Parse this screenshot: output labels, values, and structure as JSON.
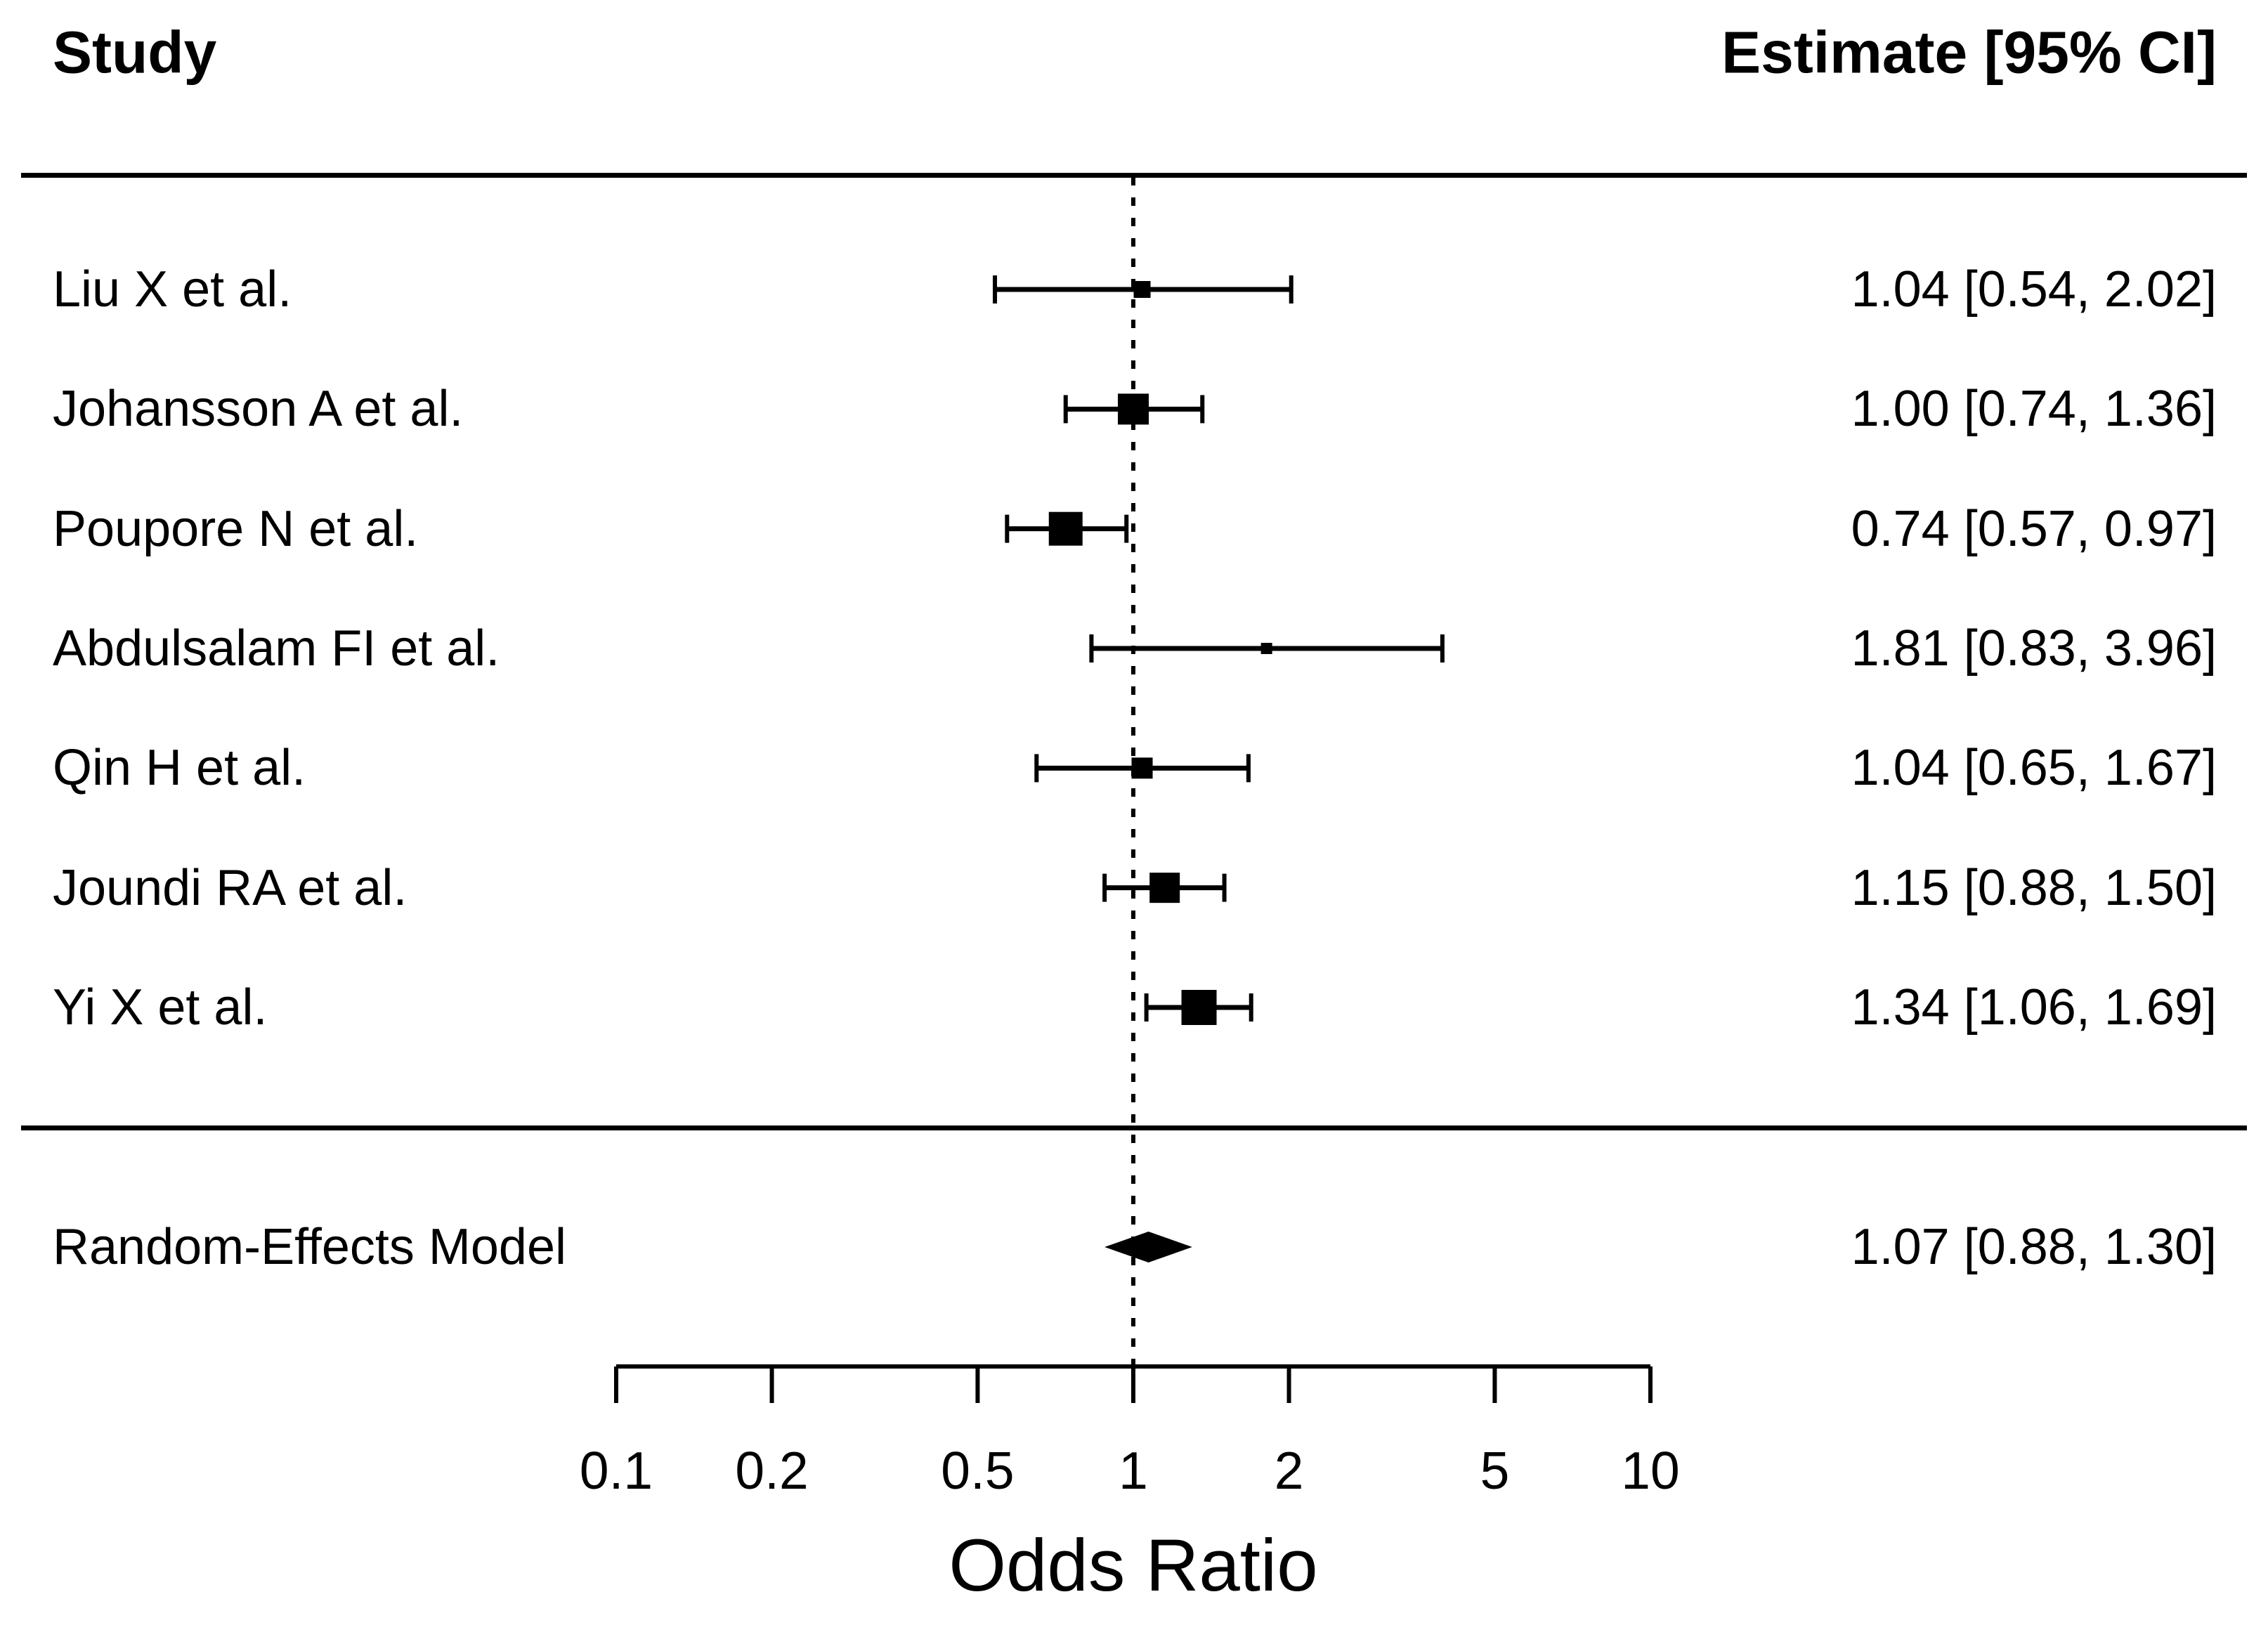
{
  "headers": {
    "study": "Study",
    "estimate": "Estimate [95% CI]"
  },
  "chart_data": {
    "type": "forest",
    "x_scale": "log10",
    "xlabel": "Odds Ratio",
    "x_ticks": [
      0.1,
      0.2,
      0.5,
      1,
      2,
      5,
      10
    ],
    "x_tick_labels": [
      "0.1",
      "0.2",
      "0.5",
      "1",
      "2",
      "5",
      "10"
    ],
    "x_range": [
      0.1,
      10
    ],
    "reference_line": 1,
    "columns": {
      "left_header": "Study",
      "right_header": "Estimate [95% CI]"
    },
    "studies": [
      {
        "label": "Liu X et al.",
        "estimate": 1.04,
        "ci_lower": 0.54,
        "ci_upper": 2.02,
        "text": "1.04 [0.54, 2.02]",
        "marker_px": 24
      },
      {
        "label": "Johansson A et al.",
        "estimate": 1.0,
        "ci_lower": 0.74,
        "ci_upper": 1.36,
        "text": "1.00 [0.74, 1.36]",
        "marker_px": 44
      },
      {
        "label": "Poupore N et al.",
        "estimate": 0.74,
        "ci_lower": 0.57,
        "ci_upper": 0.97,
        "text": "0.74 [0.57, 0.97]",
        "marker_px": 48
      },
      {
        "label": "Abdulsalam FI et al.",
        "estimate": 1.81,
        "ci_lower": 0.83,
        "ci_upper": 3.96,
        "text": "1.81 [0.83, 3.96]",
        "marker_px": 16
      },
      {
        "label": "Qin H et al.",
        "estimate": 1.04,
        "ci_lower": 0.65,
        "ci_upper": 1.67,
        "text": "1.04 [0.65, 1.67]",
        "marker_px": 30
      },
      {
        "label": "Joundi RA et al.",
        "estimate": 1.15,
        "ci_lower": 0.88,
        "ci_upper": 1.5,
        "text": "1.15 [0.88, 1.50]",
        "marker_px": 43
      },
      {
        "label": "Yi X et al.",
        "estimate": 1.34,
        "ci_lower": 1.06,
        "ci_upper": 1.69,
        "text": "1.34 [1.06, 1.69]",
        "marker_px": 50
      }
    ],
    "summary": {
      "label": "Random-Effects Model",
      "estimate": 1.07,
      "ci_lower": 0.88,
      "ci_upper": 1.3,
      "text": "1.07 [0.88, 1.30]"
    },
    "colors": {
      "foreground": "#000000",
      "background": "#ffffff"
    },
    "legend": null,
    "grid": false
  }
}
